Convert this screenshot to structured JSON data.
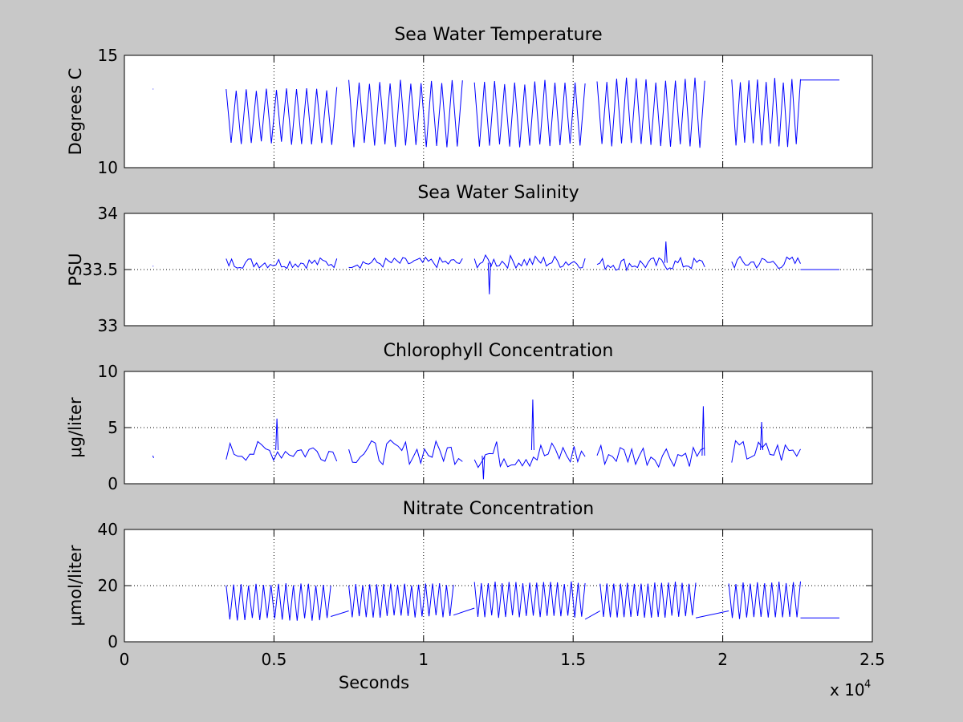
{
  "chart_data": [
    {
      "type": "line",
      "title": "Sea Water Temperature",
      "ylabel": "Degrees C",
      "xlabel": "",
      "xlim": [
        0,
        25000
      ],
      "ylim": [
        10,
        15
      ],
      "xticks": [
        0,
        5000,
        10000,
        15000,
        20000,
        25000
      ],
      "yticks": [
        10,
        15
      ],
      "ytick_labels": [
        "10",
        "15"
      ],
      "xtick_labels_shown": false,
      "grid": true,
      "segments": [
        {
          "kind": "dot",
          "x": 950,
          "y": 13.5
        },
        {
          "kind": "oscillation",
          "x_start": 3400,
          "x_end": 7100,
          "cycles": 11,
          "y_low": 11.1,
          "y_high": 13.5
        },
        {
          "kind": "oscillation",
          "x_start": 7500,
          "x_end": 11300,
          "cycles": 11,
          "y_low": 11.0,
          "y_high": 13.8
        },
        {
          "kind": "oscillation",
          "x_start": 11700,
          "x_end": 15400,
          "cycles": 11,
          "y_low": 11.0,
          "y_high": 13.8
        },
        {
          "kind": "oscillation",
          "x_start": 15800,
          "x_end": 19400,
          "cycles": 11,
          "y_low": 11.0,
          "y_high": 13.9
        },
        {
          "kind": "oscillation",
          "x_start": 20300,
          "x_end": 22600,
          "cycles": 8,
          "y_low": 11.0,
          "y_high": 13.9
        },
        {
          "kind": "line",
          "points": [
            [
              22600,
              13.9
            ],
            [
              23900,
              13.9
            ]
          ]
        }
      ]
    },
    {
      "type": "line",
      "title": "Sea Water Salinity",
      "ylabel": "PSU",
      "xlabel": "",
      "xlim": [
        0,
        25000
      ],
      "ylim": [
        33,
        34
      ],
      "xticks": [
        0,
        5000,
        10000,
        15000,
        20000,
        25000
      ],
      "yticks": [
        33,
        33.5,
        34
      ],
      "ytick_labels": [
        "33",
        "33.5",
        "34"
      ],
      "xtick_labels_shown": false,
      "grid": true,
      "segments": [
        {
          "kind": "dot",
          "x": 950,
          "y": 33.53
        },
        {
          "kind": "noise",
          "x_start": 3400,
          "x_end": 7100,
          "n": 40,
          "base": 33.56,
          "amp": 0.05
        },
        {
          "kind": "noise",
          "x_start": 7500,
          "x_end": 11300,
          "n": 40,
          "base": 33.56,
          "amp": 0.05
        },
        {
          "kind": "noise",
          "x_start": 11700,
          "x_end": 15400,
          "n": 40,
          "base": 33.57,
          "amp": 0.06
        },
        {
          "kind": "noise",
          "x_start": 15800,
          "x_end": 19400,
          "n": 40,
          "base": 33.55,
          "amp": 0.06
        },
        {
          "kind": "noise",
          "x_start": 20300,
          "x_end": 22600,
          "n": 25,
          "base": 33.56,
          "amp": 0.06
        },
        {
          "kind": "line",
          "points": [
            [
              22600,
              33.5
            ],
            [
              23900,
              33.5
            ]
          ]
        },
        {
          "kind": "spike",
          "x": 12200,
          "y_base": 33.56,
          "y_peak": 33.28
        },
        {
          "kind": "spike",
          "x": 18100,
          "y_base": 33.56,
          "y_peak": 33.75
        }
      ]
    },
    {
      "type": "line",
      "title": "Chlorophyll Concentration",
      "ylabel": "μg/liter",
      "xlabel": "",
      "xlim": [
        0,
        25000
      ],
      "ylim": [
        0,
        10
      ],
      "xticks": [
        0,
        5000,
        10000,
        15000,
        20000,
        25000
      ],
      "yticks": [
        0,
        5,
        10
      ],
      "ytick_labels": [
        "0",
        "5",
        "10"
      ],
      "xtick_labels_shown": false,
      "grid": true,
      "segments": [
        {
          "kind": "line",
          "points": [
            [
              950,
              2.5
            ],
            [
              980,
              2.3
            ]
          ]
        },
        {
          "kind": "noise",
          "x_start": 3400,
          "x_end": 7100,
          "n": 28,
          "base": 2.9,
          "amp": 0.9
        },
        {
          "kind": "noise",
          "x_start": 7500,
          "x_end": 11300,
          "n": 30,
          "base": 2.8,
          "amp": 1.1
        },
        {
          "kind": "noise",
          "x_start": 11700,
          "x_end": 15400,
          "n": 30,
          "base": 2.6,
          "amp": 1.3
        },
        {
          "kind": "noise",
          "x_start": 15800,
          "x_end": 19400,
          "n": 28,
          "base": 2.6,
          "amp": 1.1
        },
        {
          "kind": "noise",
          "x_start": 20300,
          "x_end": 22600,
          "n": 18,
          "base": 2.8,
          "amp": 1.1
        },
        {
          "kind": "spike",
          "x": 5100,
          "y_base": 3.0,
          "y_peak": 5.8
        },
        {
          "kind": "spike",
          "x": 13650,
          "y_base": 3.0,
          "y_peak": 7.5
        },
        {
          "kind": "spike",
          "x": 19350,
          "y_base": 2.5,
          "y_peak": 6.9
        },
        {
          "kind": "spike",
          "x": 21300,
          "y_base": 3.0,
          "y_peak": 5.5
        },
        {
          "kind": "spike",
          "x": 12000,
          "y_base": 2.5,
          "y_peak": 0.4
        }
      ]
    },
    {
      "type": "line",
      "title": "Nitrate Concentration",
      "ylabel": "μmol/liter",
      "xlabel": "Seconds",
      "xlim": [
        0,
        25000
      ],
      "ylim": [
        0,
        40
      ],
      "xticks": [
        0,
        5000,
        10000,
        15000,
        20000,
        25000
      ],
      "xtick_labels": [
        "0",
        "0.5",
        "1",
        "1.5",
        "2",
        "2.5"
      ],
      "x_exponent_label": "x 10",
      "x_exponent_power": "4",
      "yticks": [
        0,
        20,
        40
      ],
      "ytick_labels": [
        "0",
        "20",
        "40"
      ],
      "xtick_labels_shown": true,
      "grid": true,
      "segments": [
        {
          "kind": "oscillation",
          "x_start": 3400,
          "x_end": 6900,
          "cycles": 14,
          "y_low": 8,
          "y_high": 20.5
        },
        {
          "kind": "line",
          "points": [
            [
              6900,
              9
            ],
            [
              7500,
              11
            ]
          ]
        },
        {
          "kind": "oscillation",
          "x_start": 7500,
          "x_end": 11000,
          "cycles": 15,
          "y_low": 9,
          "y_high": 20.5
        },
        {
          "kind": "line",
          "points": [
            [
              11000,
              9.5
            ],
            [
              11700,
              12
            ]
          ]
        },
        {
          "kind": "oscillation",
          "x_start": 11700,
          "x_end": 15400,
          "cycles": 16,
          "y_low": 9,
          "y_high": 21
        },
        {
          "kind": "line",
          "points": [
            [
              15400,
              8
            ],
            [
              15900,
              11
            ]
          ]
        },
        {
          "kind": "oscillation",
          "x_start": 15900,
          "x_end": 19100,
          "cycles": 14,
          "y_low": 9,
          "y_high": 21
        },
        {
          "kind": "line",
          "points": [
            [
              19100,
              8.5
            ],
            [
              20200,
              11
            ]
          ]
        },
        {
          "kind": "oscillation",
          "x_start": 20200,
          "x_end": 22600,
          "cycles": 10,
          "y_low": 8.5,
          "y_high": 21
        },
        {
          "kind": "line",
          "points": [
            [
              22600,
              8.5
            ],
            [
              23900,
              8.5
            ]
          ]
        }
      ]
    }
  ],
  "colors": {
    "background": "#c8c8c8",
    "axes_face": "#ffffff",
    "series": "#0000ff",
    "axis": "#000000",
    "grid": "#000000"
  }
}
